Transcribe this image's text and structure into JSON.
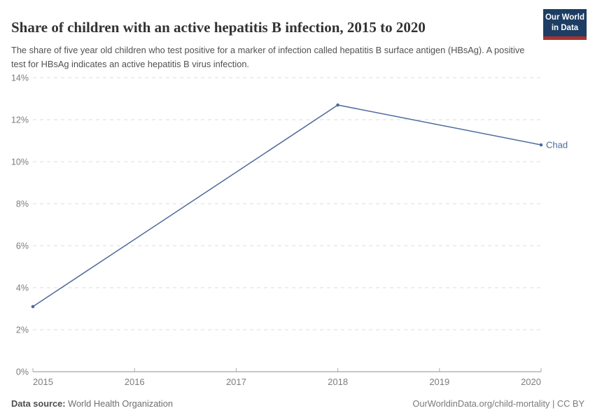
{
  "chart_data": {
    "type": "line",
    "title": "Share of children with an active hepatitis B infection, 2015 to 2020",
    "subtitle": "The share of five year old children who test positive for a marker of infection called hepatitis B surface antigen (HBsAg). A positive test for HBsAg indicates an active hepatitis B virus infection.",
    "xlabel": "",
    "ylabel": "",
    "xlim": [
      2015,
      2020
    ],
    "ylim": [
      0,
      14
    ],
    "x_ticks": [
      2015,
      2016,
      2017,
      2018,
      2019,
      2020
    ],
    "y_ticks": [
      0,
      2,
      4,
      6,
      8,
      10,
      12,
      14
    ],
    "y_tick_suffix": "%",
    "grid": "horizontal-dashed",
    "legend": "inline-end-label",
    "series": [
      {
        "name": "Chad",
        "color": "#4C6A9C",
        "x": [
          2015,
          2018,
          2020
        ],
        "values": [
          3.1,
          12.7,
          10.8
        ]
      }
    ]
  },
  "logo": {
    "line1": "Our World",
    "line2": "in Data",
    "bg_color": "#1d3d63",
    "accent_color": "#a8322d"
  },
  "footer": {
    "source_label": "Data source:",
    "source_value": "World Health Organization",
    "attribution": "OurWorldinData.org/child-mortality | CC BY"
  }
}
